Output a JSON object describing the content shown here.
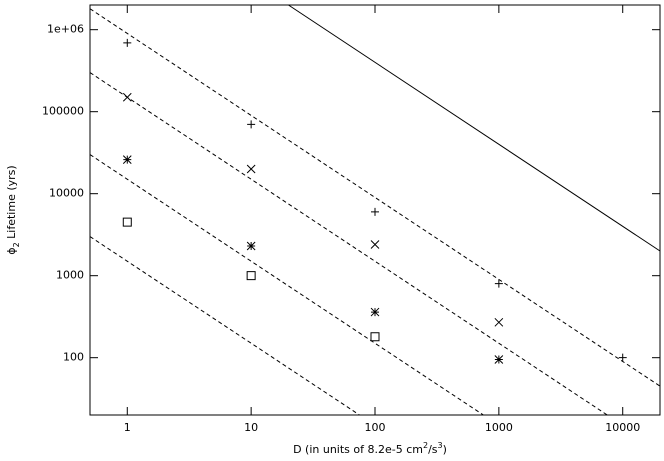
{
  "chart_data": {
    "type": "scatter",
    "xlabel": [
      "D (in units of 8.2e-5 cm",
      "2",
      "/s",
      "3",
      ")"
    ],
    "ylabel": [
      "ϕ",
      "2",
      " Lifetime (yrs)"
    ],
    "xlog": true,
    "ylog": true,
    "xlim": [
      0.5,
      20000
    ],
    "ylim": [
      20,
      2000000
    ],
    "xticks": [
      1,
      10,
      100,
      1000,
      10000
    ],
    "yticks": [
      100,
      1000,
      10000,
      100000,
      {
        "value": 1000000,
        "label": "1e+06"
      }
    ],
    "series": [
      {
        "marker": "plus",
        "color": "#000000",
        "x": [
          1,
          10,
          100,
          1000,
          10000
        ],
        "values": [
          690000,
          70000,
          6000,
          800,
          100
        ]
      },
      {
        "marker": "cross",
        "color": "#000000",
        "x": [
          1,
          10,
          100,
          1000
        ],
        "values": [
          150000,
          20000,
          2400,
          270
        ]
      },
      {
        "marker": "star",
        "color": "#000000",
        "x": [
          1,
          10,
          100,
          1000
        ],
        "values": [
          26000,
          2300,
          360,
          95
        ]
      },
      {
        "marker": "square",
        "color": "#000000",
        "x": [
          1,
          10,
          100
        ],
        "values": [
          4500,
          1000,
          180
        ]
      },
      {
        "marker": "line",
        "dash": false,
        "color": "#000000",
        "x": [
          20,
          20000
        ],
        "values": [
          2000000,
          2000
        ]
      },
      {
        "marker": "line",
        "dash": true,
        "color": "#000000",
        "x": [
          0.5,
          20000
        ],
        "values": [
          1800000,
          45
        ]
      },
      {
        "marker": "line",
        "dash": true,
        "color": "#000000",
        "x": [
          0.5,
          7500
        ],
        "values": [
          300000,
          20
        ]
      },
      {
        "marker": "line",
        "dash": true,
        "color": "#000000",
        "x": [
          0.5,
          750
        ],
        "values": [
          30000,
          20
        ]
      },
      {
        "marker": "line",
        "dash": true,
        "color": "#000000",
        "x": [
          0.5,
          75
        ],
        "values": [
          3000,
          20
        ]
      }
    ]
  }
}
